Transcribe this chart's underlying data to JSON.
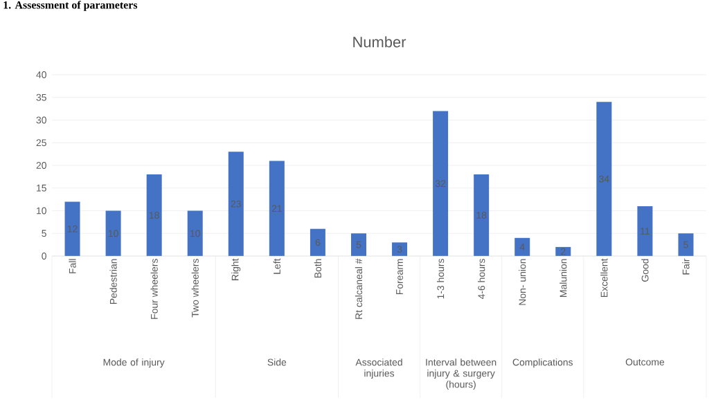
{
  "chart_data": {
    "type": "bar",
    "title": "Number",
    "categories": [
      "Fall",
      "Pedestrian",
      "Four wheelers",
      "Two wheelers",
      "Right",
      "Left",
      "Both",
      "Rt calcaneal #",
      "Forearm",
      "1-3 hours",
      "4-6 hours",
      "Non- union",
      "Malunion",
      "Excellent",
      "Good",
      "Fair"
    ],
    "values": [
      12,
      10,
      18,
      10,
      23,
      21,
      6,
      5,
      3,
      32,
      18,
      4,
      2,
      34,
      11,
      5
    ],
    "color": "#4472c4",
    "ylim": [
      0,
      40
    ],
    "yticks": [
      0,
      5,
      10,
      15,
      20,
      25,
      30,
      35,
      40
    ],
    "grid": "y",
    "data_labels": true,
    "annotations": [
      "1. Assessment of parameters",
      "Mode of injury",
      "Side",
      "Associated injuries",
      "Interval between injury & surgery (hours)",
      "Complications",
      "Outcome"
    ]
  }
}
